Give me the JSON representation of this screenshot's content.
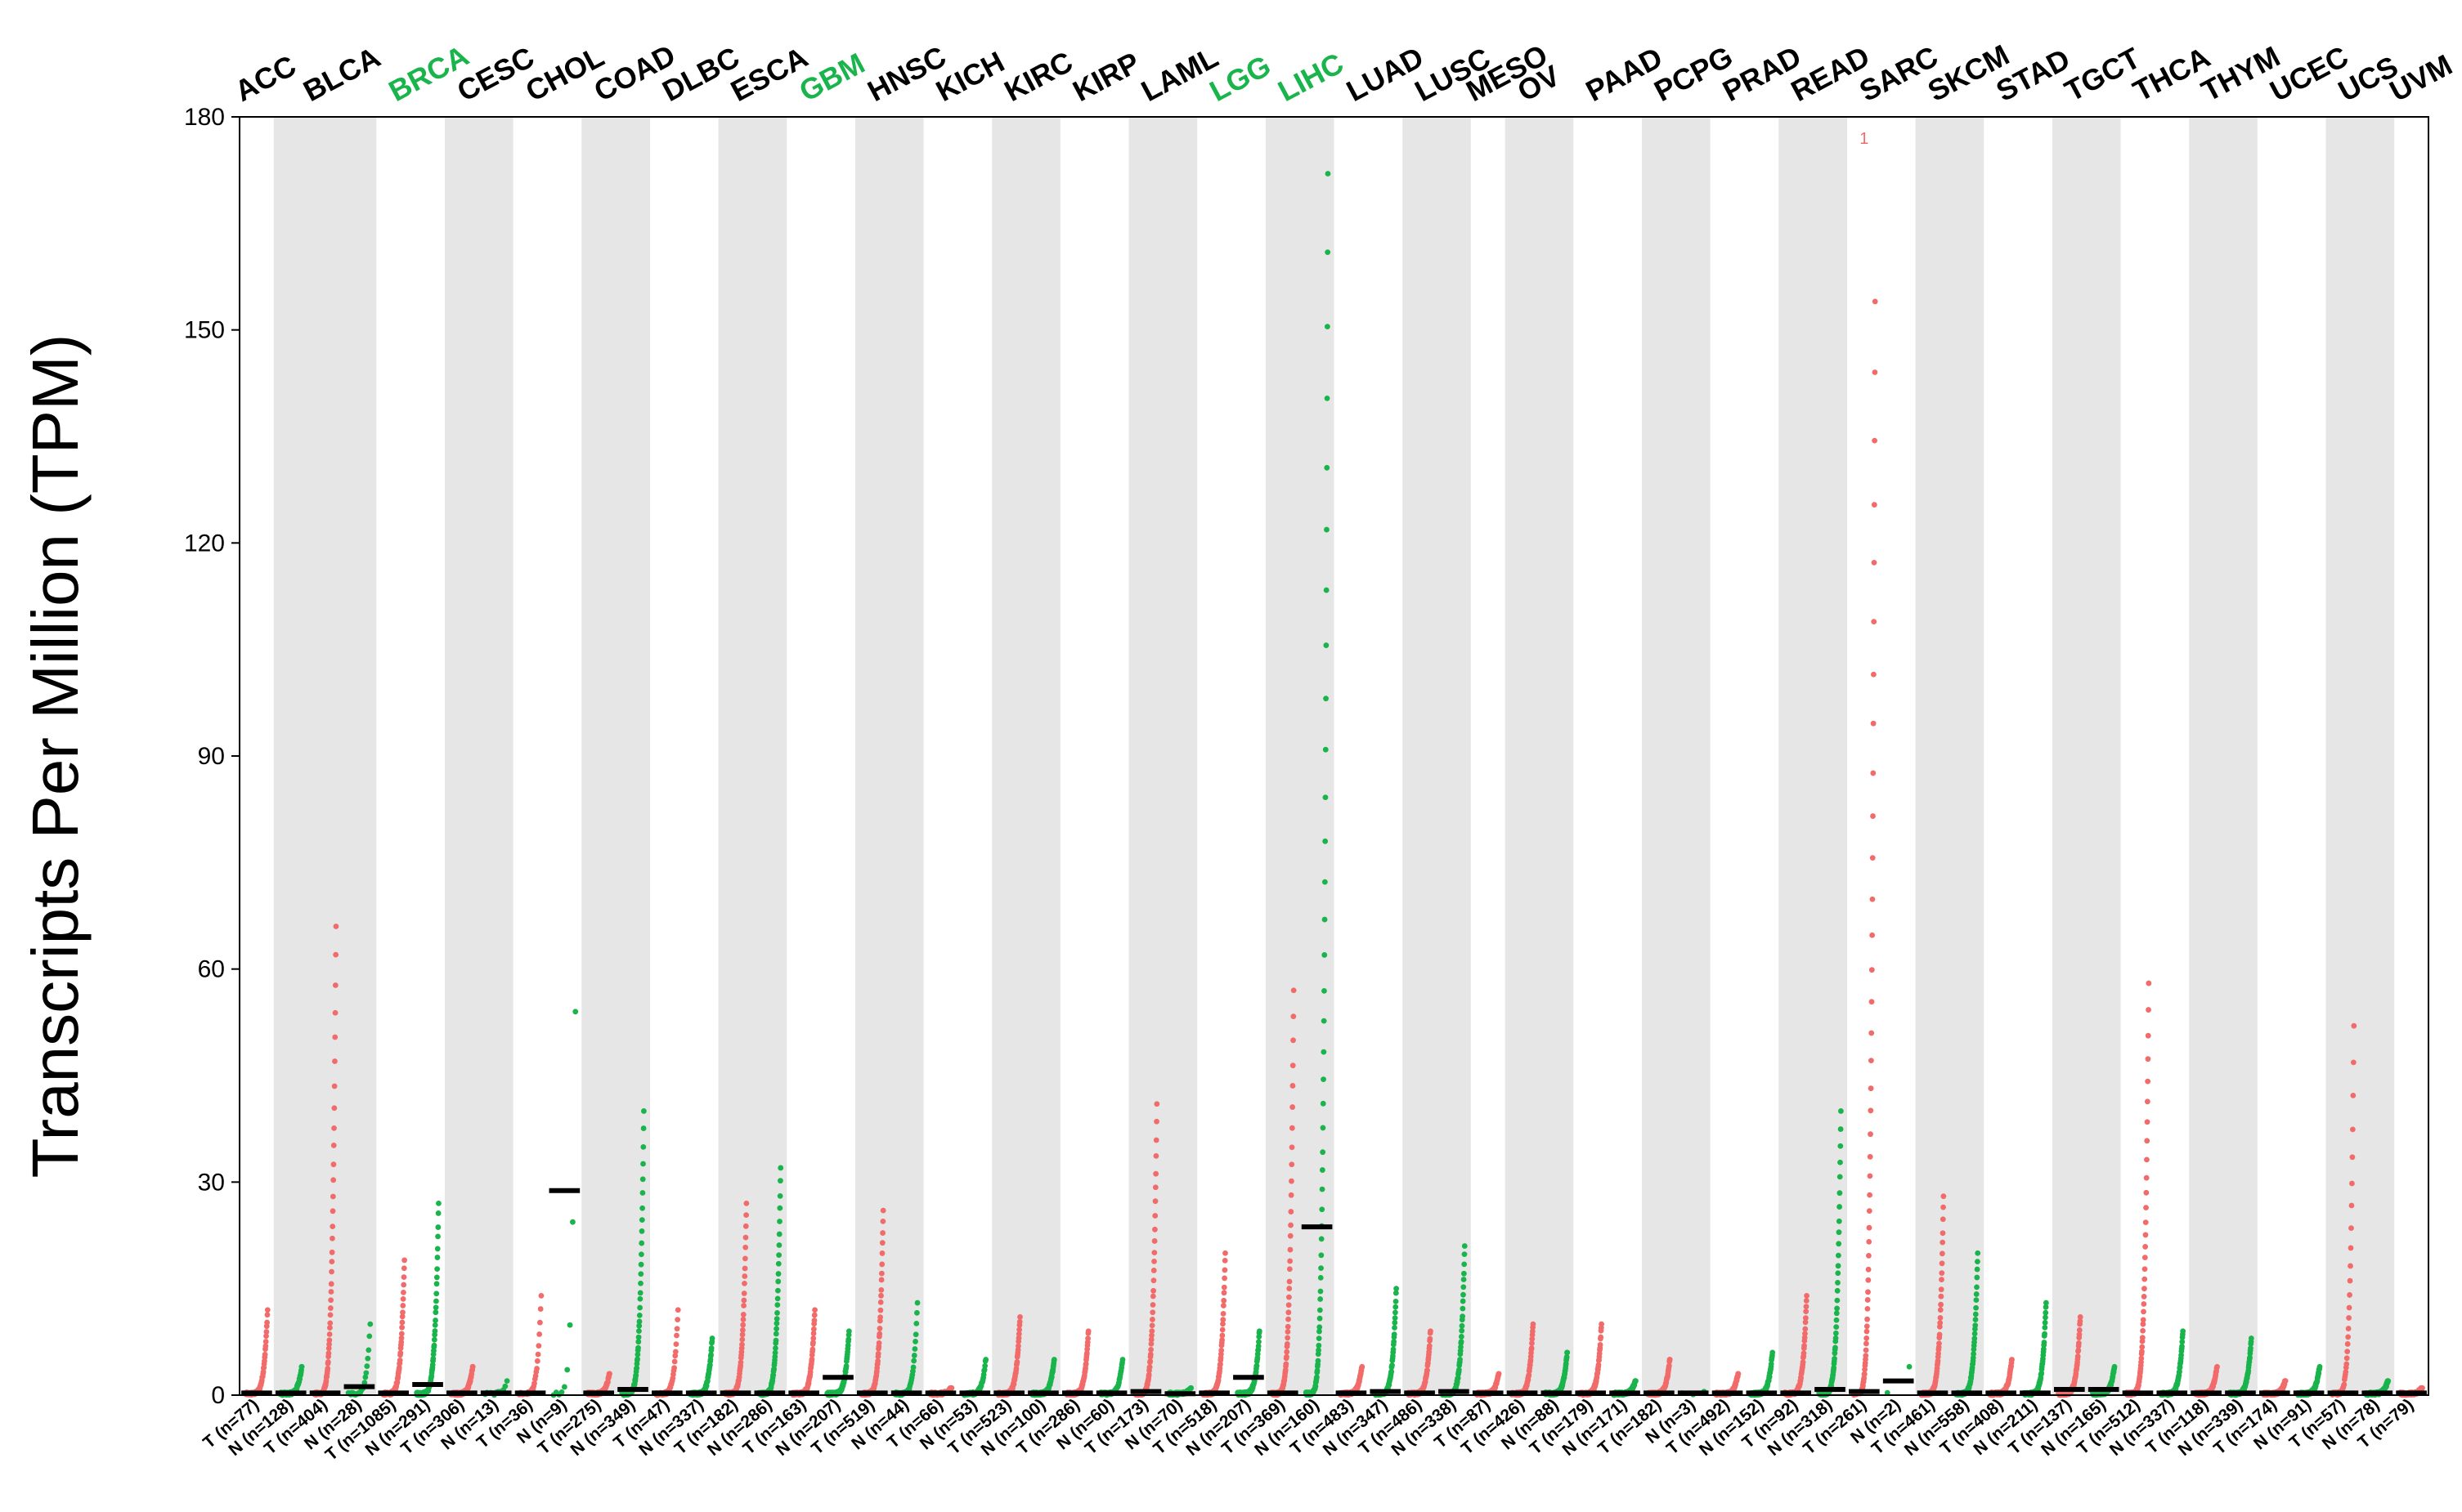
{
  "chart_data": {
    "type": "scatter",
    "title": "",
    "ylabel": "Transcripts Per Million (TPM)",
    "ylim": [
      0,
      180
    ],
    "yticks": [
      0,
      30,
      60,
      90,
      120,
      150,
      180
    ],
    "colors": {
      "tumor": "#f26b6b",
      "normal": "#19b44b",
      "highlight_label": "#19b44b",
      "label": "#000000",
      "band": "#e6e6e6",
      "median": "#000000"
    },
    "outlier_annotation": {
      "group": "SARC T",
      "text": "1"
    },
    "cancers": [
      {
        "name": "ACC",
        "highlight": false,
        "groups": [
          {
            "type": "T",
            "label": "T (n=77)",
            "n": 77,
            "median": 0.3,
            "max": 12
          }
        ]
      },
      {
        "name": "BLCA",
        "highlight": false,
        "groups": [
          {
            "type": "N",
            "label": "N (n=128)",
            "n": 128,
            "median": 0.3,
            "max": 4
          },
          {
            "type": "T",
            "label": "T (n=404)",
            "n": 404,
            "median": 0.3,
            "max": 66
          },
          {
            "type": "N",
            "label": "N (n=28)",
            "n": 28,
            "median": 1.2,
            "max": 10
          }
        ]
      },
      {
        "name": "BRCA",
        "highlight": true,
        "groups": [
          {
            "type": "T",
            "label": "T (n=1085)",
            "n": 1085,
            "median": 0.3,
            "max": 19
          },
          {
            "type": "N",
            "label": "N (n=291)",
            "n": 291,
            "median": 1.5,
            "max": 27
          }
        ]
      },
      {
        "name": "CESC",
        "highlight": false,
        "groups": [
          {
            "type": "T",
            "label": "T (n=306)",
            "n": 306,
            "median": 0.3,
            "max": 4
          },
          {
            "type": "N",
            "label": "N (n=13)",
            "n": 13,
            "median": 0.3,
            "max": 2
          }
        ]
      },
      {
        "name": "CHOL",
        "highlight": false,
        "groups": [
          {
            "type": "T",
            "label": "T (n=36)",
            "n": 36,
            "median": 0.3,
            "max": 14
          },
          {
            "type": "N",
            "label": "N (n=9)",
            "n": 9,
            "median": 28.8,
            "max": 54
          }
        ]
      },
      {
        "name": "COAD",
        "highlight": false,
        "groups": [
          {
            "type": "T",
            "label": "T (n=275)",
            "n": 275,
            "median": 0.3,
            "max": 3
          },
          {
            "type": "N",
            "label": "N (n=349)",
            "n": 349,
            "median": 0.8,
            "max": 40
          }
        ]
      },
      {
        "name": "DLBC",
        "highlight": false,
        "groups": [
          {
            "type": "T",
            "label": "T (n=47)",
            "n": 47,
            "median": 0.3,
            "max": 12
          },
          {
            "type": "N",
            "label": "N (n=337)",
            "n": 337,
            "median": 0.3,
            "max": 8
          }
        ]
      },
      {
        "name": "ESCA",
        "highlight": false,
        "groups": [
          {
            "type": "T",
            "label": "T (n=182)",
            "n": 182,
            "median": 0.3,
            "max": 27
          },
          {
            "type": "N",
            "label": "N (n=286)",
            "n": 286,
            "median": 0.3,
            "max": 32
          }
        ]
      },
      {
        "name": "GBM",
        "highlight": true,
        "groups": [
          {
            "type": "T",
            "label": "T (n=163)",
            "n": 163,
            "median": 0.3,
            "max": 12
          },
          {
            "type": "N",
            "label": "N (n=207)",
            "n": 207,
            "median": 2.5,
            "max": 9
          }
        ]
      },
      {
        "name": "HNSC",
        "highlight": false,
        "groups": [
          {
            "type": "T",
            "label": "T (n=519)",
            "n": 519,
            "median": 0.3,
            "max": 26
          },
          {
            "type": "N",
            "label": "N (n=44)",
            "n": 44,
            "median": 0.3,
            "max": 13
          }
        ]
      },
      {
        "name": "KICH",
        "highlight": false,
        "groups": [
          {
            "type": "T",
            "label": "T (n=66)",
            "n": 66,
            "median": 0.3,
            "max": 1
          },
          {
            "type": "N",
            "label": "N (n=53)",
            "n": 53,
            "median": 0.3,
            "max": 5
          }
        ]
      },
      {
        "name": "KIRC",
        "highlight": false,
        "groups": [
          {
            "type": "T",
            "label": "T (n=523)",
            "n": 523,
            "median": 0.3,
            "max": 11
          },
          {
            "type": "N",
            "label": "N (n=100)",
            "n": 100,
            "median": 0.3,
            "max": 5
          }
        ]
      },
      {
        "name": "KIRP",
        "highlight": false,
        "groups": [
          {
            "type": "T",
            "label": "T (n=286)",
            "n": 286,
            "median": 0.3,
            "max": 9
          },
          {
            "type": "N",
            "label": "N (n=60)",
            "n": 60,
            "median": 0.3,
            "max": 5
          }
        ]
      },
      {
        "name": "LAML",
        "highlight": false,
        "groups": [
          {
            "type": "T",
            "label": "T (n=173)",
            "n": 173,
            "median": 0.5,
            "max": 41
          },
          {
            "type": "N",
            "label": "N (n=70)",
            "n": 70,
            "median": 0.2,
            "max": 1
          }
        ]
      },
      {
        "name": "LGG",
        "highlight": true,
        "groups": [
          {
            "type": "T",
            "label": "T (n=518)",
            "n": 518,
            "median": 0.3,
            "max": 20
          },
          {
            "type": "N",
            "label": "N (n=207)",
            "n": 207,
            "median": 2.5,
            "max": 9
          }
        ]
      },
      {
        "name": "LIHC",
        "highlight": true,
        "groups": [
          {
            "type": "T",
            "label": "T (n=369)",
            "n": 369,
            "median": 0.3,
            "max": 57
          },
          {
            "type": "N",
            "label": "N (n=160)",
            "n": 160,
            "median": 23.7,
            "max": 172
          }
        ]
      },
      {
        "name": "LUAD",
        "highlight": false,
        "groups": [
          {
            "type": "T",
            "label": "T (n=483)",
            "n": 483,
            "median": 0.3,
            "max": 4
          },
          {
            "type": "N",
            "label": "N (n=347)",
            "n": 347,
            "median": 0.5,
            "max": 15
          }
        ]
      },
      {
        "name": "LUSC",
        "highlight": false,
        "groups": [
          {
            "type": "T",
            "label": "T (n=486)",
            "n": 486,
            "median": 0.3,
            "max": 9
          },
          {
            "type": "N",
            "label": "N (n=338)",
            "n": 338,
            "median": 0.5,
            "max": 21
          }
        ]
      },
      {
        "name": "MESO",
        "highlight": false,
        "groups": [
          {
            "type": "T",
            "label": "T (n=87)",
            "n": 87,
            "median": 0.3,
            "max": 3
          }
        ]
      },
      {
        "name": "OV",
        "highlight": false,
        "groups": [
          {
            "type": "T",
            "label": "T (n=426)",
            "n": 426,
            "median": 0.3,
            "max": 10
          },
          {
            "type": "N",
            "label": "N (n=88)",
            "n": 88,
            "median": 0.3,
            "max": 6
          }
        ]
      },
      {
        "name": "PAAD",
        "highlight": false,
        "groups": [
          {
            "type": "T",
            "label": "T (n=179)",
            "n": 179,
            "median": 0.3,
            "max": 10
          },
          {
            "type": "N",
            "label": "N (n=171)",
            "n": 171,
            "median": 0.3,
            "max": 2
          }
        ]
      },
      {
        "name": "PCPG",
        "highlight": false,
        "groups": [
          {
            "type": "T",
            "label": "T (n=182)",
            "n": 182,
            "median": 0.3,
            "max": 5
          },
          {
            "type": "N",
            "label": "N (n=3)",
            "n": 3,
            "median": 0.3,
            "max": 0.5
          }
        ]
      },
      {
        "name": "PRAD",
        "highlight": false,
        "groups": [
          {
            "type": "T",
            "label": "T (n=492)",
            "n": 492,
            "median": 0.3,
            "max": 3
          },
          {
            "type": "N",
            "label": "N (n=152)",
            "n": 152,
            "median": 0.3,
            "max": 6
          }
        ]
      },
      {
        "name": "READ",
        "highlight": false,
        "groups": [
          {
            "type": "T",
            "label": "T (n=92)",
            "n": 92,
            "median": 0.3,
            "max": 14
          },
          {
            "type": "N",
            "label": "N (n=318)",
            "n": 318,
            "median": 0.8,
            "max": 40
          }
        ]
      },
      {
        "name": "SARC",
        "highlight": false,
        "groups": [
          {
            "type": "T",
            "label": "T (n=261)",
            "n": 261,
            "median": 0.5,
            "max": 154
          },
          {
            "type": "N",
            "label": "N (n=2)",
            "n": 2,
            "median": 2,
            "max": 4
          }
        ]
      },
      {
        "name": "SKCM",
        "highlight": false,
        "groups": [
          {
            "type": "T",
            "label": "T (n=461)",
            "n": 461,
            "median": 0.3,
            "max": 28
          },
          {
            "type": "N",
            "label": "N (n=558)",
            "n": 558,
            "median": 0.3,
            "max": 20
          }
        ]
      },
      {
        "name": "STAD",
        "highlight": false,
        "groups": [
          {
            "type": "T",
            "label": "T (n=408)",
            "n": 408,
            "median": 0.3,
            "max": 5
          },
          {
            "type": "N",
            "label": "N (n=211)",
            "n": 211,
            "median": 0.3,
            "max": 13
          }
        ]
      },
      {
        "name": "TGCT",
        "highlight": false,
        "groups": [
          {
            "type": "T",
            "label": "T (n=137)",
            "n": 137,
            "median": 0.8,
            "max": 11
          },
          {
            "type": "N",
            "label": "N (n=165)",
            "n": 165,
            "median": 0.8,
            "max": 4
          }
        ]
      },
      {
        "name": "THCA",
        "highlight": false,
        "groups": [
          {
            "type": "T",
            "label": "T (n=512)",
            "n": 512,
            "median": 0.3,
            "max": 58
          },
          {
            "type": "N",
            "label": "N (n=337)",
            "n": 337,
            "median": 0.3,
            "max": 9
          }
        ]
      },
      {
        "name": "THYM",
        "highlight": false,
        "groups": [
          {
            "type": "T",
            "label": "T (n=118)",
            "n": 118,
            "median": 0.3,
            "max": 4
          },
          {
            "type": "N",
            "label": "N (n=339)",
            "n": 339,
            "median": 0.3,
            "max": 8
          }
        ]
      },
      {
        "name": "UCEC",
        "highlight": false,
        "groups": [
          {
            "type": "T",
            "label": "T (n=174)",
            "n": 174,
            "median": 0.3,
            "max": 2
          },
          {
            "type": "N",
            "label": "N (n=91)",
            "n": 91,
            "median": 0.3,
            "max": 4
          }
        ]
      },
      {
        "name": "UCS",
        "highlight": false,
        "groups": [
          {
            "type": "T",
            "label": "T (n=57)",
            "n": 57,
            "median": 0.3,
            "max": 52
          },
          {
            "type": "N",
            "label": "N (n=78)",
            "n": 78,
            "median": 0.3,
            "max": 2
          }
        ]
      },
      {
        "name": "UVM",
        "highlight": false,
        "groups": [
          {
            "type": "T",
            "label": "T (n=79)",
            "n": 79,
            "median": 0.3,
            "max": 1
          }
        ]
      }
    ]
  }
}
